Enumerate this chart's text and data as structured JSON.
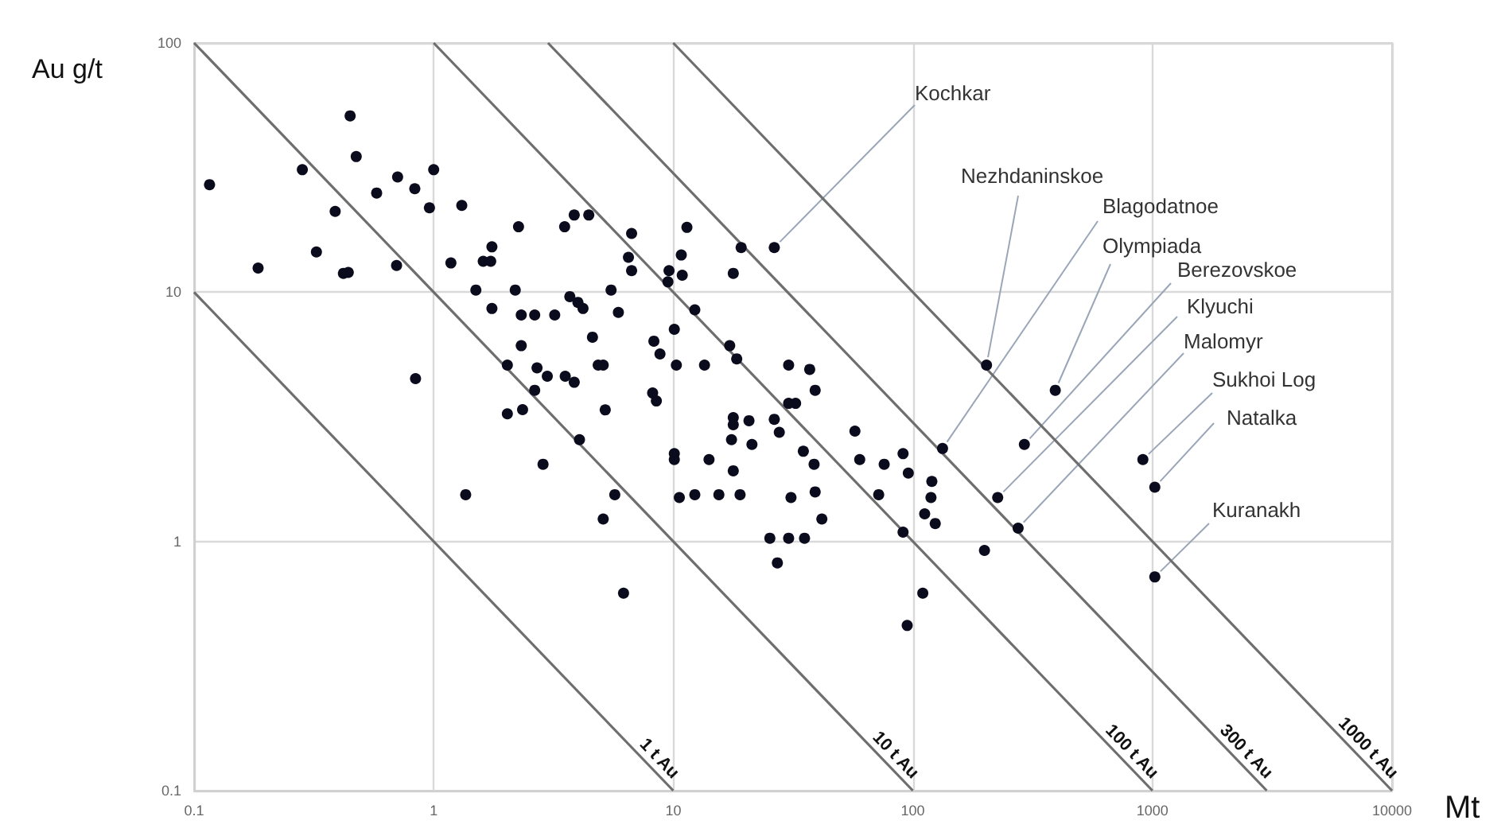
{
  "chart_data": {
    "type": "scatter",
    "xlabel": "Mt",
    "ylabel": "Au g/t",
    "log": "xy",
    "grid": true,
    "marker": "circle",
    "xlim": [
      0.1,
      10000
    ],
    "ylim": [
      0.1,
      100
    ],
    "xticks": [
      0.1,
      1,
      10,
      100,
      1000,
      10000
    ],
    "yticks": [
      0.1,
      1,
      10,
      100
    ],
    "series": [
      {
        "color": "#0b0b1e",
        "x": [
          0.116,
          0.185,
          0.283,
          0.324,
          0.388,
          0.42,
          0.44,
          0.448,
          0.475,
          0.578,
          0.7,
          0.707,
          0.834,
          0.84,
          0.96,
          1.0,
          1.18,
          1.31,
          1.36,
          1.5,
          1.61,
          1.73,
          1.75,
          1.75,
          2.03,
          2.03,
          2.19,
          2.26,
          2.32,
          2.32,
          2.64,
          2.35,
          2.64,
          2.7,
          2.86,
          2.98,
          3.2,
          3.52,
          3.54,
          3.86,
          3.7,
          3.86,
          4.0,
          4.2,
          4.44,
          4.06,
          4.6,
          4.86,
          5.1,
          5.2,
          5.1,
          5.5,
          5.7,
          5.9,
          6.2,
          6.5,
          6.7,
          6.7,
          8.2,
          8.5,
          8.3,
          8.8,
          10.3,
          10.1,
          9.6,
          9.5,
          10.9,
          10.8,
          11.4,
          12.3,
          10.1,
          10.1,
          10.6,
          12.3,
          13.5,
          14.1,
          15.5,
          19,
          17.8,
          17.8,
          17.8,
          17.5,
          20.7,
          21.3,
          17.2,
          18.4,
          17.8,
          19.2,
          26.4,
          26.4,
          27.7,
          30.3,
          37.1,
          39.1,
          30.3,
          32.4,
          34.9,
          38.7,
          31,
          39.1,
          41.7,
          25.3,
          30.3,
          35.3,
          27.2,
          57.3,
          60,
          75.9,
          72,
          91,
          95.7,
          91,
          110,
          94.7,
          120,
          119,
          112,
          124,
          133,
          203,
          226,
          275,
          199,
          292,
          393,
          912,
          1023,
          1023
        ],
        "values": [
          27,
          12.5,
          31,
          14.5,
          21.1,
          11.9,
          12,
          51,
          35,
          25,
          12.8,
          29,
          26,
          4.5,
          21.8,
          31,
          13.1,
          22.3,
          1.54,
          10.2,
          13.3,
          13.3,
          15.2,
          8.6,
          5.1,
          3.25,
          10.2,
          18.3,
          6.1,
          8.1,
          8.1,
          3.38,
          4.04,
          4.97,
          2.04,
          4.6,
          8.1,
          18.3,
          4.6,
          4.35,
          9.6,
          20.4,
          9.1,
          8.6,
          20.4,
          2.56,
          6.6,
          5.1,
          5.1,
          3.37,
          1.23,
          10.2,
          1.54,
          8.3,
          0.62,
          13.8,
          17.2,
          12.2,
          3.94,
          3.66,
          6.36,
          5.65,
          5.1,
          7.1,
          12.2,
          11,
          11.7,
          14.1,
          18.2,
          8.5,
          2.25,
          2.13,
          1.5,
          1.54,
          5.1,
          2.13,
          1.54,
          1.54,
          1.92,
          3.14,
          2.94,
          2.56,
          3.05,
          2.45,
          6.1,
          5.4,
          11.9,
          15.1,
          15.1,
          3.09,
          2.74,
          5.1,
          4.9,
          4.04,
          3.58,
          3.58,
          2.3,
          2.04,
          1.5,
          1.58,
          1.23,
          1.03,
          1.03,
          1.03,
          0.82,
          2.77,
          2.13,
          2.04,
          1.54,
          2.25,
          1.88,
          1.09,
          0.62,
          0.46,
          1.74,
          1.5,
          1.29,
          1.18,
          2.36,
          5.1,
          1.5,
          1.13,
          0.92,
          2.45,
          4.04,
          2.13,
          1.65,
          0.72
        ]
      },
      {
        "type": "line",
        "name": "1 t Au",
        "color": "#6e6e6e",
        "marker": "none",
        "line_style": "solid",
        "x": [
          0.1,
          10
        ],
        "values": [
          10,
          0.1
        ]
      },
      {
        "type": "line",
        "name": "10 t Au",
        "color": "#6e6e6e",
        "marker": "none",
        "line_style": "solid",
        "x": [
          0.1,
          100
        ],
        "values": [
          100,
          0.1
        ]
      },
      {
        "type": "line",
        "name": "100 t Au",
        "color": "#6e6e6e",
        "marker": "none",
        "line_style": "solid",
        "x": [
          1,
          1000
        ],
        "values": [
          100,
          0.1
        ]
      },
      {
        "type": "line",
        "name": "300 t Au",
        "color": "#6e6e6e",
        "marker": "none",
        "line_style": "solid",
        "x": [
          3,
          3000
        ],
        "values": [
          100,
          0.1
        ]
      },
      {
        "type": "line",
        "name": "1000 t Au",
        "color": "#6e6e6e",
        "marker": "none",
        "line_style": "solid",
        "x": [
          10,
          10000
        ],
        "values": [
          100,
          0.1
        ]
      }
    ],
    "annotations": [
      {
        "text": "Kochkar",
        "x": 26.4,
        "y": 15.1
      },
      {
        "text": "Nezhdaninskoe",
        "x": 203,
        "y": 5.1
      },
      {
        "text": "Blagodatnoe",
        "x": 133,
        "y": 2.36
      },
      {
        "text": "Olympiada",
        "x": 393,
        "y": 4.04
      },
      {
        "text": "Berezovskoe",
        "x": 292,
        "y": 2.45
      },
      {
        "text": "Klyuchi",
        "x": 226,
        "y": 1.5
      },
      {
        "text": "Malomyr",
        "x": 275,
        "y": 1.13
      },
      {
        "text": "Sukhoi Log",
        "x": 912,
        "y": 2.13
      },
      {
        "text": "Natalka",
        "x": 1023,
        "y": 1.65
      },
      {
        "text": "Kuranakh",
        "x": 1023,
        "y": 0.72
      }
    ]
  }
}
